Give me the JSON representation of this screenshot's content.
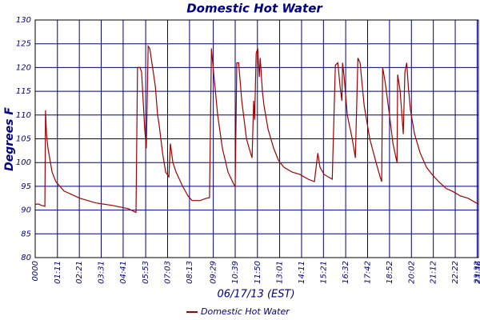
{
  "chart_data": {
    "type": "line",
    "title": "Domestic Hot Water",
    "x_label": "06/17/13 (EST)",
    "y_label": "Degrees F",
    "xlim": [
      0,
      1416
    ],
    "ylim": [
      80,
      130
    ],
    "xticks": [
      {
        "value": 0,
        "label": "0000"
      },
      {
        "value": 71,
        "label": "01:11"
      },
      {
        "value": 141,
        "label": "02:21"
      },
      {
        "value": 211,
        "label": "03:31"
      },
      {
        "value": 281,
        "label": "04:41"
      },
      {
        "value": 353,
        "label": "05:53"
      },
      {
        "value": 423,
        "label": "07:03"
      },
      {
        "value": 493,
        "label": "08:13"
      },
      {
        "value": 569,
        "label": "09:29"
      },
      {
        "value": 639,
        "label": "10:39"
      },
      {
        "value": 710,
        "label": "11:50"
      },
      {
        "value": 781,
        "label": "13:01"
      },
      {
        "value": 851,
        "label": "14:11"
      },
      {
        "value": 921,
        "label": "15:21"
      },
      {
        "value": 992,
        "label": "16:32"
      },
      {
        "value": 1062,
        "label": "17:42"
      },
      {
        "value": 1132,
        "label": "18:52"
      },
      {
        "value": 1202,
        "label": "20:02"
      },
      {
        "value": 1272,
        "label": "21:12"
      },
      {
        "value": 1342,
        "label": "22:22"
      },
      {
        "value": 1412,
        "label": "23:32"
      },
      {
        "value": 1416,
        "label": "23:36"
      }
    ],
    "yticks": [
      80,
      85,
      90,
      95,
      100,
      105,
      110,
      115,
      120,
      125,
      130
    ],
    "grid": true,
    "series": [
      {
        "name": "Domestic Hot Water",
        "color": "#a00000",
        "x": [
          0,
          10,
          20,
          31,
          33,
          36,
          41,
          54,
          66,
          92,
          143,
          194,
          245,
          297,
          322,
          327,
          335,
          340,
          350,
          355,
          361,
          366,
          373,
          384,
          391,
          396,
          407,
          417,
          427,
          432,
          440,
          450,
          471,
          488,
          501,
          527,
          547,
          557,
          563,
          570,
          583,
          598,
          616,
          634,
          639,
          644,
          650,
          660,
          675,
          688,
          693,
          698,
          701,
          706,
          711,
          716,
          719,
          726,
          731,
          744,
          762,
          777,
          782,
          795,
          821,
          846,
          872,
          892,
          903,
          910,
          923,
          949,
          959,
          967,
          974,
          980,
          982,
          987,
          997,
          1013,
          1023,
          1031,
          1038,
          1051,
          1069,
          1089,
          1102,
          1107,
          1110,
          1118,
          1130,
          1143,
          1156,
          1158,
          1166,
          1176,
          1181,
          1187,
          1192,
          1199,
          1212,
          1230,
          1250,
          1268,
          1289,
          1314,
          1332,
          1358,
          1383,
          1409,
          1416
        ],
        "values": [
          91.2,
          91.3,
          91,
          90.8,
          111,
          106,
          103,
          98,
          96,
          94,
          92.5,
          91.5,
          91,
          90.3,
          89.5,
          120,
          120,
          119,
          107,
          103,
          124.5,
          124,
          121,
          116,
          110,
          108,
          102,
          98,
          97,
          104,
          100,
          98,
          95,
          93,
          92,
          92,
          92.5,
          92.6,
          124,
          119,
          110,
          103,
          98,
          95.5,
          95,
          121,
          121,
          113,
          105,
          102,
          101,
          113,
          109,
          123,
          124,
          118,
          122,
          115,
          112,
          107,
          103,
          100.5,
          100,
          99,
          98,
          97.5,
          96.5,
          96,
          102,
          99,
          97.5,
          96.5,
          120.5,
          121,
          116,
          113,
          121,
          118,
          110,
          105,
          101,
          122,
          121,
          112,
          105,
          100,
          97,
          96,
          120,
          117,
          111,
          104,
          100,
          118.5,
          115,
          106,
          119,
          121,
          116,
          111,
          106,
          102,
          99,
          97.5,
          96,
          94.5,
          94,
          93,
          92.5,
          91.5,
          91.3
        ]
      }
    ]
  }
}
